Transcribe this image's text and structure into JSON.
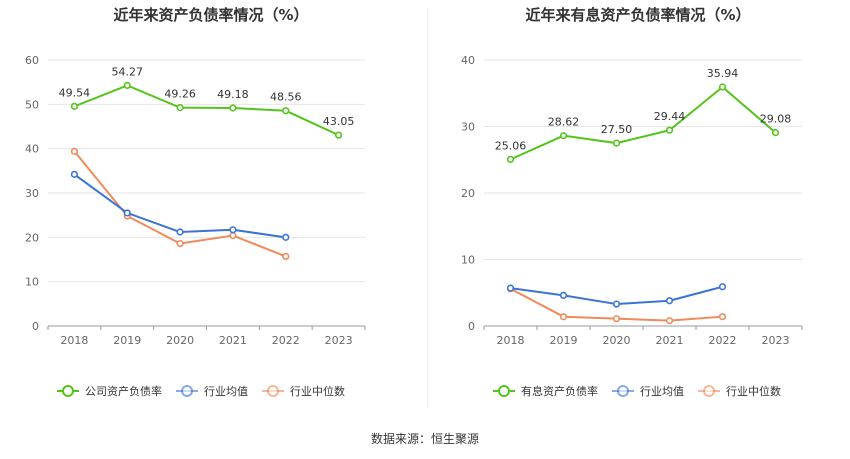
{
  "source": {
    "label": "数据来源：",
    "name": "恒生聚源"
  },
  "colors": {
    "company": "#52c41a",
    "industry_avg": "#3b74d6",
    "industry_median": "#ef8a5a",
    "grid": "#e6e6e6",
    "axis": "#999999"
  },
  "chart_data": [
    {
      "type": "line",
      "title": "近年来资产负债率情况（%）",
      "categories": [
        "2018",
        "2019",
        "2020",
        "2021",
        "2022",
        "2023"
      ],
      "ylim": [
        0,
        60
      ],
      "yticks": [
        0,
        10,
        20,
        30,
        40,
        50,
        60
      ],
      "series": [
        {
          "name": "公司资产负债率",
          "values": [
            49.54,
            54.27,
            49.26,
            49.18,
            48.56,
            43.05
          ],
          "labeled": true,
          "label_text": [
            "49.54",
            "54.27",
            "49.26",
            "49.18",
            "48.56",
            "43.05"
          ]
        },
        {
          "name": "行业均值",
          "values": [
            34.2,
            25.5,
            21.2,
            21.7,
            20.0,
            null
          ],
          "labeled": false
        },
        {
          "name": "行业中位数",
          "values": [
            39.4,
            24.8,
            18.6,
            20.4,
            15.7,
            null
          ],
          "labeled": false
        }
      ]
    },
    {
      "type": "line",
      "title": "近年来有息资产负债率情况（%）",
      "categories": [
        "2018",
        "2019",
        "2020",
        "2021",
        "2022",
        "2023"
      ],
      "ylim": [
        0,
        40
      ],
      "yticks": [
        0,
        10,
        20,
        30,
        40
      ],
      "series": [
        {
          "name": "有息资产负债率",
          "values": [
            25.06,
            28.62,
            27.5,
            29.44,
            35.94,
            29.08
          ],
          "labeled": true,
          "label_text": [
            "25.06",
            "28.62",
            "27.50",
            "29.44",
            "35.94",
            "29.08"
          ]
        },
        {
          "name": "行业均值",
          "values": [
            5.7,
            4.6,
            3.3,
            3.8,
            5.9,
            null
          ],
          "labeled": false
        },
        {
          "name": "行业中位数",
          "values": [
            5.6,
            1.4,
            1.1,
            0.8,
            1.4,
            null
          ],
          "labeled": false
        }
      ]
    }
  ]
}
